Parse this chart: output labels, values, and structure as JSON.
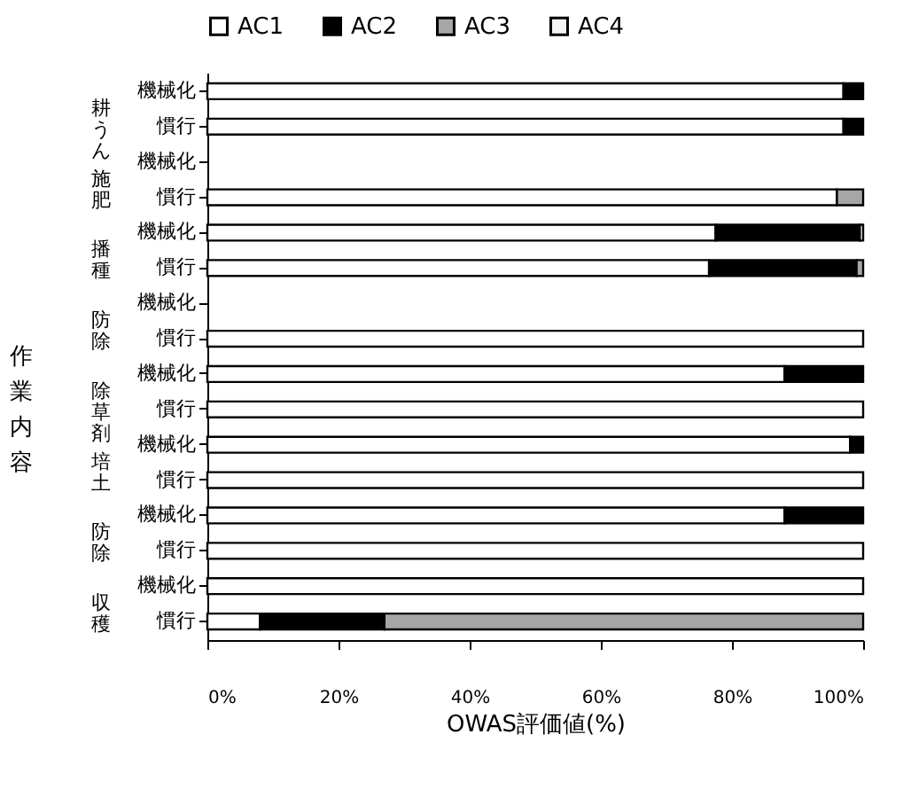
{
  "chart_data": {
    "type": "bar",
    "orientation": "horizontal",
    "stacked": true,
    "categories": [
      "機械化",
      "慣行",
      "機械化",
      "慣行",
      "機械化",
      "慣行",
      "機械化",
      "慣行",
      "機械化",
      "慣行",
      "機械化",
      "慣行",
      "機械化",
      "慣行",
      "機械化",
      "慣行"
    ],
    "series": [
      {
        "name": "AC1",
        "color": "#ffffff",
        "values": [
          97,
          97,
          null,
          96,
          77.5,
          76.5,
          null,
          100,
          88,
          100,
          98,
          100,
          88,
          100,
          100,
          8
        ]
      },
      {
        "name": "AC2",
        "color": "#000000",
        "values": [
          3,
          3,
          null,
          null,
          22,
          22.5,
          null,
          null,
          12,
          null,
          2,
          null,
          12,
          null,
          null,
          19
        ]
      },
      {
        "name": "AC3",
        "color": "#a6a6a6",
        "values": [
          null,
          null,
          null,
          4,
          null,
          1,
          null,
          null,
          null,
          null,
          null,
          null,
          null,
          null,
          null,
          73
        ]
      },
      {
        "name": "AC4",
        "color": "#f4f4f4",
        "values": [
          null,
          null,
          null,
          null,
          0.5,
          null,
          null,
          null,
          null,
          null,
          null,
          null,
          null,
          null,
          null,
          null
        ]
      }
    ],
    "xlim": [
      0,
      100
    ],
    "xticks": [
      {
        "value": 0,
        "label": "0%"
      },
      {
        "value": 20,
        "label": "20%"
      },
      {
        "value": 40,
        "label": "40%"
      },
      {
        "value": 60,
        "label": "60%"
      },
      {
        "value": 80,
        "label": "80%"
      },
      {
        "value": 100,
        "label": "100%"
      }
    ],
    "xlabel": "OWAS評価値(%)",
    "ylabel": "作業内容",
    "annotations": [
      "耕うん",
      "施肥",
      "播種",
      "防除",
      "除草剤",
      "培土",
      "防除",
      "収穫"
    ],
    "legend": "top",
    "grid": false
  }
}
